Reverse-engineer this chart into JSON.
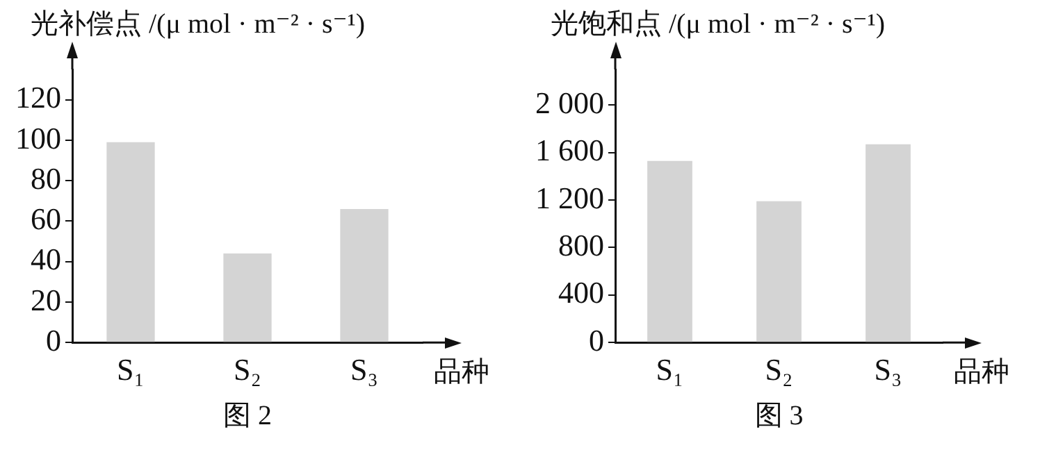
{
  "chart_data": [
    {
      "type": "bar",
      "ylabel": "光补偿点 /(μ mol · m⁻² · s⁻¹)",
      "xlabel": "品种",
      "annotations": [
        "图 2"
      ],
      "categories": [
        "S₁",
        "S₂",
        "S₃"
      ],
      "series": [
        {
          "color": "#d4d4d4",
          "values": [
            99,
            44,
            66
          ]
        }
      ],
      "ylim": [
        0,
        135
      ],
      "yticks": [
        0,
        20,
        40,
        60,
        80,
        100,
        120
      ],
      "grid": false,
      "legend": false
    },
    {
      "type": "bar",
      "ylabel": "光饱和点 /(μ mol · m⁻² · s⁻¹)",
      "xlabel": "品种",
      "annotations": [
        "图 3"
      ],
      "categories": [
        "S₁",
        "S₂",
        "S₃"
      ],
      "series": [
        {
          "color": "#d4d4d4",
          "values": [
            1530,
            1190,
            1670
          ]
        }
      ],
      "ylim": [
        0,
        2300
      ],
      "yticks": [
        0,
        400,
        800,
        {
          "value": 1200,
          "label": "1 200"
        },
        {
          "value": 1600,
          "label": "1 600"
        },
        {
          "value": 2000,
          "label": "2 000"
        }
      ],
      "grid": false,
      "legend": false
    }
  ]
}
